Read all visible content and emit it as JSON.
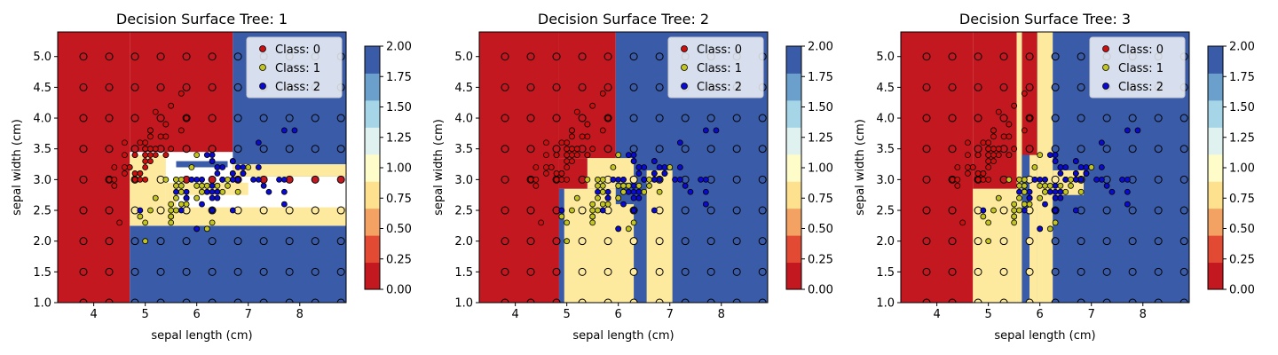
{
  "colors": {
    "red": "#c3181f",
    "yellow": "#fdea9e",
    "blue": "#3a5ca8",
    "point_class_0": "#cc1010",
    "point_class_1": "#c2c421",
    "point_class_2": "#0a0ad0",
    "cbar_levels": [
      "#c3181f",
      "#e34a33",
      "#f4a263",
      "#fee18f",
      "#fefdca",
      "#dff2ef",
      "#a5d5e7",
      "#6b9fcc",
      "#3a5ca8"
    ]
  },
  "chart_data": [
    {
      "type": "scatter",
      "title": "Decision Surface Tree: 1",
      "xlabel": "sepal length (cm)",
      "ylabel": "sepal width (cm)",
      "xlim": [
        3.3,
        8.9
      ],
      "ylim": [
        1.0,
        5.4
      ],
      "xticks": [
        "4",
        "5",
        "6",
        "7",
        "8"
      ],
      "yticks": [
        "1.0",
        "1.5",
        "2.0",
        "2.5",
        "3.0",
        "3.5",
        "4.0",
        "4.5",
        "5.0"
      ],
      "legend": [
        "Class: 0",
        "Class: 1",
        "Class: 2"
      ],
      "legend_position": "upper right",
      "colorbar": {
        "min": 0.0,
        "max": 2.0,
        "ticks": [
          "0.00",
          "0.25",
          "0.50",
          "0.75",
          "1.00",
          "1.25",
          "1.50",
          "1.75",
          "2.00"
        ]
      },
      "regions": [
        {
          "x": [
            3.3,
            4.7
          ],
          "y": [
            1.0,
            5.4
          ],
          "class": 0
        },
        {
          "x": [
            4.7,
            6.7
          ],
          "y": [
            3.45,
            5.4
          ],
          "class": 0
        },
        {
          "x": [
            4.7,
            8.9
          ],
          "y": [
            1.0,
            2.25
          ],
          "class": 2
        },
        {
          "x": [
            6.7,
            8.9
          ],
          "y": [
            3.05,
            5.4
          ],
          "class": 2
        },
        {
          "x": [
            4.7,
            8.9
          ],
          "y": [
            2.25,
            2.45
          ],
          "class": 1
        },
        {
          "x": [
            4.7,
            5.4
          ],
          "y": [
            2.45,
            3.4
          ],
          "class": 1
        },
        {
          "x": [
            5.4,
            8.9
          ],
          "y": [
            2.45,
            2.55
          ],
          "class": 1
        },
        {
          "x": [
            5.4,
            5.6
          ],
          "y": [
            2.55,
            2.95
          ],
          "class": 1
        },
        {
          "x": [
            6.7,
            8.9
          ],
          "y": [
            3.05,
            3.25
          ],
          "class": 1
        },
        {
          "x": [
            5.6,
            6.6
          ],
          "y": [
            3.2,
            3.3
          ],
          "class": 2
        },
        {
          "x": [
            5.6,
            7.0
          ],
          "y": [
            2.75,
            2.95
          ],
          "class": 1
        }
      ],
      "grid_points": true
    },
    {
      "type": "scatter",
      "title": "Decision Surface Tree: 2",
      "xlabel": "sepal length (cm)",
      "ylabel": "sepal width (cm)",
      "xlim": [
        3.3,
        8.9
      ],
      "ylim": [
        1.0,
        5.4
      ],
      "xticks": [
        "4",
        "5",
        "6",
        "7",
        "8"
      ],
      "yticks": [
        "1.0",
        "1.5",
        "2.0",
        "2.5",
        "3.0",
        "3.5",
        "4.0",
        "4.5",
        "5.0"
      ],
      "legend": [
        "Class: 0",
        "Class: 1",
        "Class: 2"
      ],
      "legend_position": "upper right",
      "colorbar": {
        "min": 0.0,
        "max": 2.0,
        "ticks": [
          "0.00",
          "0.25",
          "0.50",
          "0.75",
          "1.00",
          "1.25",
          "1.50",
          "1.75",
          "2.00"
        ]
      },
      "regions": [
        {
          "x": [
            3.3,
            4.85
          ],
          "y": [
            1.0,
            5.4
          ],
          "class": 0
        },
        {
          "x": [
            4.85,
            5.95
          ],
          "y": [
            3.35,
            5.4
          ],
          "class": 0
        },
        {
          "x": [
            4.85,
            5.4
          ],
          "y": [
            2.85,
            3.35
          ],
          "class": 0
        },
        {
          "x": [
            5.95,
            8.9
          ],
          "y": [
            1.0,
            5.4
          ],
          "class": 2
        },
        {
          "x": [
            4.85,
            5.95
          ],
          "y": [
            1.0,
            2.85
          ],
          "class": 2
        },
        {
          "x": [
            5.4,
            5.95
          ],
          "y": [
            2.85,
            3.35
          ],
          "class": 2
        },
        {
          "x": [
            4.95,
            6.3
          ],
          "y": [
            1.0,
            2.85
          ],
          "class": 1
        },
        {
          "x": [
            5.4,
            6.3
          ],
          "y": [
            2.85,
            3.35
          ],
          "class": 1
        },
        {
          "x": [
            6.55,
            7.05
          ],
          "y": [
            1.0,
            3.15
          ],
          "class": 1
        },
        {
          "x": [
            5.95,
            6.3
          ],
          "y": [
            2.6,
            2.95
          ],
          "class": 2
        }
      ],
      "grid_points": true
    },
    {
      "type": "scatter",
      "title": "Decision Surface Tree: 3",
      "xlabel": "sepal length (cm)",
      "ylabel": "sepal width (cm)",
      "xlim": [
        3.3,
        8.9
      ],
      "ylim": [
        1.0,
        5.4
      ],
      "xticks": [
        "4",
        "5",
        "6",
        "7",
        "8"
      ],
      "yticks": [
        "1.0",
        "1.5",
        "2.0",
        "2.5",
        "3.0",
        "3.5",
        "4.0",
        "4.5",
        "5.0"
      ],
      "legend": [
        "Class: 0",
        "Class: 1",
        "Class: 2"
      ],
      "legend_position": "upper right",
      "colorbar": {
        "min": 0.0,
        "max": 2.0,
        "ticks": [
          "0.00",
          "0.25",
          "0.50",
          "0.75",
          "1.00",
          "1.25",
          "1.50",
          "1.75",
          "2.00"
        ]
      },
      "regions": [
        {
          "x": [
            3.3,
            4.7
          ],
          "y": [
            1.0,
            5.4
          ],
          "class": 0
        },
        {
          "x": [
            4.7,
            5.55
          ],
          "y": [
            2.85,
            5.4
          ],
          "class": 0
        },
        {
          "x": [
            5.65,
            5.95
          ],
          "y": [
            3.0,
            5.4
          ],
          "class": 0
        },
        {
          "x": [
            5.95,
            8.9
          ],
          "y": [
            1.0,
            5.4
          ],
          "class": 2
        },
        {
          "x": [
            4.7,
            5.55
          ],
          "y": [
            1.0,
            2.85
          ],
          "class": 1
        },
        {
          "x": [
            5.55,
            5.65
          ],
          "y": [
            1.0,
            5.4
          ],
          "class": 1
        },
        {
          "x": [
            5.65,
            5.8
          ],
          "y": [
            1.0,
            3.4
          ],
          "class": 2
        },
        {
          "x": [
            5.8,
            5.95
          ],
          "y": [
            1.0,
            3.4
          ],
          "class": 1
        },
        {
          "x": [
            5.95,
            6.25
          ],
          "y": [
            1.0,
            5.4
          ],
          "class": 1
        },
        {
          "x": [
            6.25,
            6.85
          ],
          "y": [
            2.75,
            3.15
          ],
          "class": 1
        }
      ],
      "grid_points": true
    }
  ],
  "iris_points": {
    "class_0": [
      [
        5.1,
        3.5
      ],
      [
        4.9,
        3.0
      ],
      [
        4.7,
        3.2
      ],
      [
        4.6,
        3.1
      ],
      [
        5.0,
        3.6
      ],
      [
        5.4,
        3.9
      ],
      [
        4.6,
        3.4
      ],
      [
        5.0,
        3.4
      ],
      [
        4.4,
        2.9
      ],
      [
        4.9,
        3.1
      ],
      [
        5.4,
        3.7
      ],
      [
        4.8,
        3.4
      ],
      [
        4.8,
        3.0
      ],
      [
        4.3,
        3.0
      ],
      [
        5.8,
        4.0
      ],
      [
        5.7,
        4.4
      ],
      [
        5.4,
        3.9
      ],
      [
        5.1,
        3.5
      ],
      [
        5.7,
        3.8
      ],
      [
        5.1,
        3.8
      ],
      [
        5.4,
        3.4
      ],
      [
        5.1,
        3.7
      ],
      [
        4.6,
        3.6
      ],
      [
        5.1,
        3.3
      ],
      [
        4.8,
        3.4
      ],
      [
        5.0,
        3.0
      ],
      [
        5.0,
        3.4
      ],
      [
        5.2,
        3.5
      ],
      [
        5.2,
        3.4
      ],
      [
        4.7,
        3.2
      ],
      [
        4.8,
        3.1
      ],
      [
        5.4,
        3.4
      ],
      [
        5.2,
        4.1
      ],
      [
        5.5,
        4.2
      ],
      [
        4.9,
        3.1
      ],
      [
        5.0,
        3.2
      ],
      [
        5.5,
        3.5
      ],
      [
        4.9,
        3.6
      ],
      [
        4.4,
        3.0
      ],
      [
        5.1,
        3.4
      ],
      [
        5.0,
        3.5
      ],
      [
        4.5,
        2.3
      ],
      [
        4.4,
        3.2
      ],
      [
        5.0,
        3.5
      ],
      [
        5.1,
        3.8
      ],
      [
        4.8,
        3.0
      ],
      [
        5.1,
        3.8
      ],
      [
        4.6,
        3.2
      ],
      [
        5.3,
        3.7
      ],
      [
        5.0,
        3.3
      ]
    ],
    "class_1": [
      [
        7.0,
        3.2
      ],
      [
        6.4,
        3.2
      ],
      [
        6.9,
        3.1
      ],
      [
        5.5,
        2.3
      ],
      [
        6.5,
        2.8
      ],
      [
        5.7,
        2.8
      ],
      [
        6.3,
        3.3
      ],
      [
        4.9,
        2.4
      ],
      [
        6.6,
        2.9
      ],
      [
        5.2,
        2.7
      ],
      [
        5.0,
        2.0
      ],
      [
        5.9,
        3.0
      ],
      [
        6.0,
        2.2
      ],
      [
        6.1,
        2.9
      ],
      [
        5.6,
        2.9
      ],
      [
        6.7,
        3.1
      ],
      [
        5.6,
        3.0
      ],
      [
        5.8,
        2.7
      ],
      [
        6.2,
        2.2
      ],
      [
        5.6,
        2.5
      ],
      [
        5.9,
        3.2
      ],
      [
        6.1,
        2.8
      ],
      [
        6.3,
        2.5
      ],
      [
        6.1,
        2.8
      ],
      [
        6.4,
        2.9
      ],
      [
        6.6,
        3.0
      ],
      [
        6.8,
        2.8
      ],
      [
        6.7,
        3.0
      ],
      [
        6.0,
        2.9
      ],
      [
        5.7,
        2.6
      ],
      [
        5.5,
        2.4
      ],
      [
        5.5,
        2.4
      ],
      [
        5.8,
        2.7
      ],
      [
        6.0,
        2.7
      ],
      [
        5.4,
        3.0
      ],
      [
        6.0,
        3.4
      ],
      [
        6.7,
        3.1
      ],
      [
        6.3,
        2.3
      ],
      [
        5.6,
        3.0
      ],
      [
        5.5,
        2.5
      ],
      [
        5.5,
        2.6
      ],
      [
        6.1,
        3.0
      ],
      [
        5.8,
        2.6
      ],
      [
        5.0,
        2.3
      ],
      [
        5.6,
        2.7
      ],
      [
        5.7,
        3.0
      ],
      [
        5.7,
        2.9
      ],
      [
        6.2,
        2.9
      ],
      [
        5.1,
        2.5
      ],
      [
        5.7,
        2.8
      ]
    ],
    "class_2": [
      [
        6.3,
        3.3
      ],
      [
        5.8,
        2.7
      ],
      [
        7.1,
        3.0
      ],
      [
        6.3,
        2.9
      ],
      [
        6.5,
        3.0
      ],
      [
        7.6,
        3.0
      ],
      [
        4.9,
        2.5
      ],
      [
        7.3,
        2.9
      ],
      [
        6.7,
        2.5
      ],
      [
        7.2,
        3.6
      ],
      [
        6.5,
        3.2
      ],
      [
        6.4,
        2.7
      ],
      [
        6.8,
        3.0
      ],
      [
        5.7,
        2.5
      ],
      [
        5.8,
        2.8
      ],
      [
        6.4,
        3.2
      ],
      [
        6.5,
        3.0
      ],
      [
        7.7,
        3.8
      ],
      [
        7.7,
        2.6
      ],
      [
        6.0,
        2.2
      ],
      [
        6.9,
        3.2
      ],
      [
        5.6,
        2.8
      ],
      [
        7.7,
        2.8
      ],
      [
        6.3,
        2.7
      ],
      [
        6.7,
        3.3
      ],
      [
        7.2,
        3.2
      ],
      [
        6.2,
        2.8
      ],
      [
        6.1,
        3.0
      ],
      [
        6.4,
        2.8
      ],
      [
        7.2,
        3.0
      ],
      [
        7.4,
        2.8
      ],
      [
        7.9,
        3.8
      ],
      [
        6.4,
        2.8
      ],
      [
        6.3,
        2.8
      ],
      [
        6.1,
        2.6
      ],
      [
        7.7,
        3.0
      ],
      [
        6.3,
        3.4
      ],
      [
        6.4,
        3.1
      ],
      [
        6.0,
        3.0
      ],
      [
        6.9,
        3.1
      ],
      [
        6.7,
        3.1
      ],
      [
        6.9,
        3.1
      ],
      [
        5.8,
        2.7
      ],
      [
        6.8,
        3.2
      ],
      [
        6.7,
        3.3
      ],
      [
        6.7,
        3.0
      ],
      [
        6.3,
        2.5
      ],
      [
        6.5,
        3.0
      ],
      [
        6.2,
        3.4
      ],
      [
        5.9,
        3.0
      ]
    ]
  }
}
